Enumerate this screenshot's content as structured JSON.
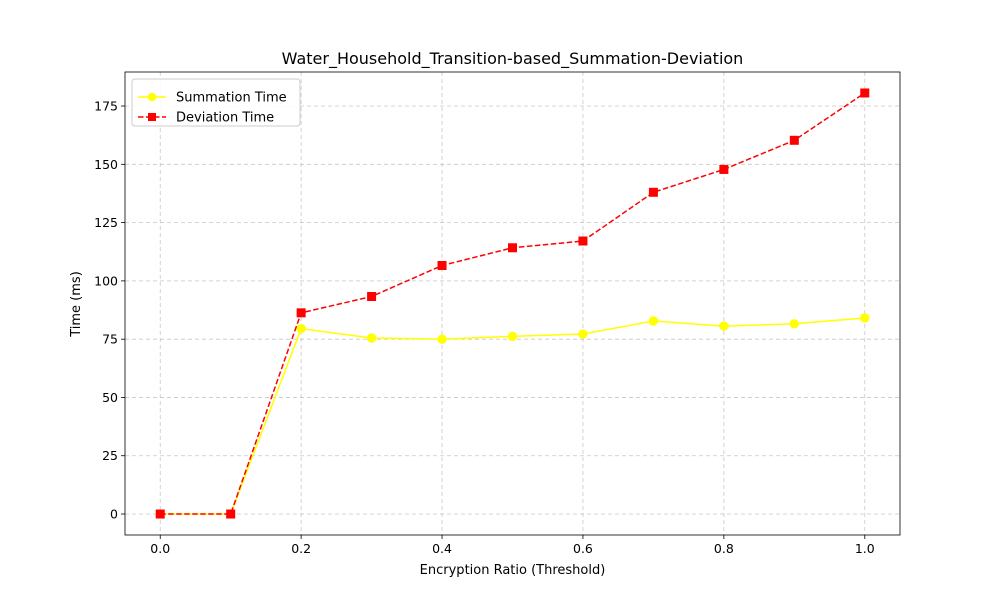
{
  "chart_data": {
    "type": "line",
    "title": "Water_Household_Transition-based_Summation-Deviation",
    "xlabel": "Encryption Ratio (Threshold)",
    "ylabel": "Time (ms)",
    "x": [
      0.0,
      0.1,
      0.2,
      0.3,
      0.4,
      0.5,
      0.6,
      0.7,
      0.8,
      0.9,
      1.0
    ],
    "xlim": [
      -0.05,
      1.05
    ],
    "ylim": [
      -9,
      189.6
    ],
    "xticks": [
      0.0,
      0.2,
      0.4,
      0.6,
      0.8,
      1.0
    ],
    "xtick_labels": [
      "0.0",
      "0.2",
      "0.4",
      "0.6",
      "0.8",
      "1.0"
    ],
    "yticks": [
      0,
      25,
      50,
      75,
      100,
      125,
      150,
      175
    ],
    "ytick_labels": [
      "0",
      "25",
      "50",
      "75",
      "100",
      "125",
      "150",
      "175"
    ],
    "grid": true,
    "legend_position": "top-left",
    "series": [
      {
        "name": "Summation Time",
        "color": "#ffff00",
        "line_style": "solid",
        "marker": "circle",
        "values": [
          0,
          0,
          79.5,
          75.5,
          75,
          76.2,
          77.2,
          82.8,
          80.6,
          81.6,
          84.1
        ]
      },
      {
        "name": "Deviation Time",
        "color": "#ff0000",
        "line_style": "dashed",
        "marker": "square",
        "values": [
          0,
          0,
          86.3,
          93.3,
          106.6,
          114.2,
          117.1,
          138,
          147.8,
          160.3,
          180.6
        ]
      }
    ]
  }
}
